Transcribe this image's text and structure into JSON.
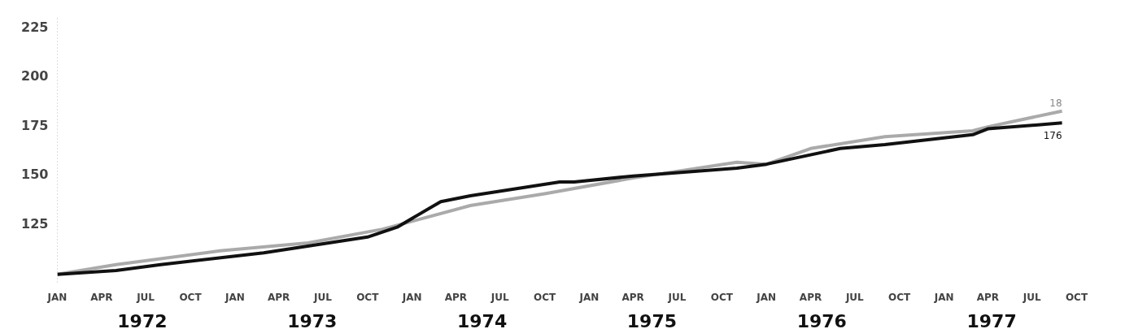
{
  "chart_data": {
    "type": "line",
    "xlim": [
      "1972-01-01",
      "1977-10-01"
    ],
    "ylim": [
      95,
      230
    ],
    "yticks": [
      125,
      150,
      175,
      200,
      225
    ],
    "xticks": [
      {
        "value": "1972-01-01",
        "label": "JAN"
      },
      {
        "value": "1972-04-01",
        "label": "APR"
      },
      {
        "value": "1972-07-01",
        "label": "JUL"
      },
      {
        "value": "1972-10-01",
        "label": "OCT"
      },
      {
        "value": "1973-01-01",
        "label": "JAN"
      },
      {
        "value": "1973-04-01",
        "label": "APR"
      },
      {
        "value": "1973-07-01",
        "label": "JUL"
      },
      {
        "value": "1973-10-01",
        "label": "OCT"
      },
      {
        "value": "1974-01-01",
        "label": "JAN"
      },
      {
        "value": "1974-04-01",
        "label": "APR"
      },
      {
        "value": "1974-07-01",
        "label": "JUL"
      },
      {
        "value": "1974-10-01",
        "label": "OCT"
      },
      {
        "value": "1975-01-01",
        "label": "JAN"
      },
      {
        "value": "1975-04-01",
        "label": "APR"
      },
      {
        "value": "1975-07-01",
        "label": "JUL"
      },
      {
        "value": "1975-10-01",
        "label": "OCT"
      },
      {
        "value": "1976-01-01",
        "label": "JAN"
      },
      {
        "value": "1976-04-01",
        "label": "APR"
      },
      {
        "value": "1976-07-01",
        "label": "JUL"
      },
      {
        "value": "1976-10-01",
        "label": "OCT"
      },
      {
        "value": "1977-01-01",
        "label": "JAN"
      },
      {
        "value": "1977-04-01",
        "label": "APR"
      },
      {
        "value": "1977-07-01",
        "label": "JUL"
      },
      {
        "value": "1977-10-01",
        "label": "OCT"
      }
    ],
    "grid": false,
    "line_style": "solid",
    "series": [
      {
        "color": "#aaaaaa",
        "x": [
          "1972-01",
          "1972-05",
          "1972-12",
          "1973-06",
          "1973-11",
          "1974-01",
          "1974-05",
          "1974-10",
          "1975-04",
          "1975-11",
          "1976-01",
          "1976-04",
          "1976-09",
          "1977-03",
          "1977-04",
          "1977-09"
        ],
        "values": [
          99,
          104,
          111,
          115,
          122,
          126,
          134,
          140,
          148,
          156,
          155,
          163,
          169,
          172,
          174,
          182
        ]
      },
      {
        "color": "#111111",
        "x": [
          "1972-01",
          "1972-05",
          "1972-08",
          "1973-03",
          "1973-10",
          "1973-12",
          "1974-03",
          "1974-05",
          "1974-11",
          "1974-12",
          "1975-04",
          "1975-11",
          "1976-01",
          "1976-06",
          "1976-09",
          "1977-03",
          "1977-04",
          "1977-09"
        ],
        "values": [
          99,
          101,
          104,
          110,
          118,
          123,
          136,
          139,
          146,
          146,
          149,
          153,
          155,
          163,
          165,
          170,
          173,
          176
        ],
        "value_labels": [
          null,
          null,
          null,
          null,
          null,
          null,
          null,
          null,
          null,
          null,
          null,
          null,
          null,
          null,
          null,
          null,
          null,
          "176"
        ]
      }
    ],
    "annotations": [
      {
        "text": "18",
        "x": "1977-09",
        "y": 182
      },
      "1972",
      "1973",
      "1974",
      "1975",
      "1976",
      "1977"
    ]
  }
}
